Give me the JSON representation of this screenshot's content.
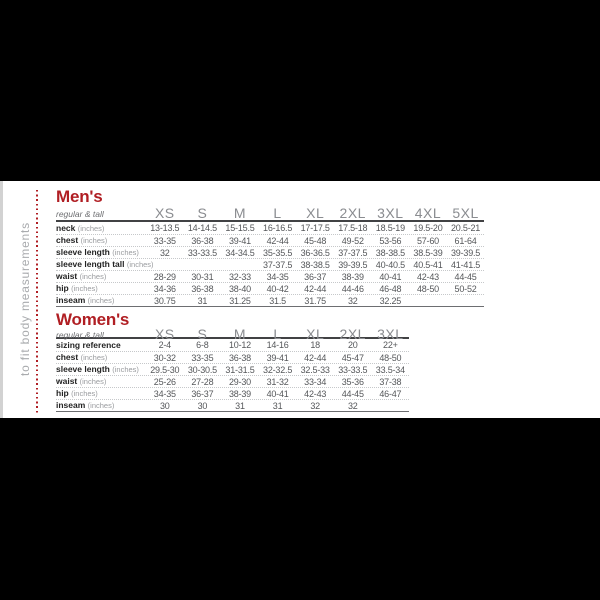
{
  "sidebar_label": "to fit body measurements",
  "colors": {
    "accent_red": "#B01E23",
    "background": "#000000",
    "panel": "#FFFFFF",
    "header_gray": "#8A8C90",
    "value_gray": "#55575A"
  },
  "chart_data": [
    {
      "type": "table",
      "title": "Men's",
      "subtitle": "regular & tall",
      "columns": [
        "XS",
        "S",
        "M",
        "L",
        "XL",
        "2XL",
        "3XL",
        "4XL",
        "5XL"
      ],
      "rows": [
        {
          "label": "neck",
          "unit": "(inches)",
          "values": [
            "13-13.5",
            "14-14.5",
            "15-15.5",
            "16-16.5",
            "17-17.5",
            "17.5-18",
            "18.5-19",
            "19.5-20",
            "20.5-21"
          ]
        },
        {
          "label": "chest",
          "unit": "(inches)",
          "values": [
            "33-35",
            "36-38",
            "39-41",
            "42-44",
            "45-48",
            "49-52",
            "53-56",
            "57-60",
            "61-64"
          ]
        },
        {
          "label": "sleeve length",
          "unit": "(inches)",
          "values": [
            "32",
            "33-33.5",
            "34-34.5",
            "35-35.5",
            "36-36.5",
            "37-37.5",
            "38-38.5",
            "38.5-39",
            "39-39.5"
          ]
        },
        {
          "label": "sleeve length tall",
          "unit": "(inches)",
          "values": [
            "",
            "",
            "",
            "37-37.5",
            "38-38.5",
            "39-39.5",
            "40-40.5",
            "40.5-41",
            "41-41.5"
          ]
        },
        {
          "label": "waist",
          "unit": "(inches)",
          "values": [
            "28-29",
            "30-31",
            "32-33",
            "34-35",
            "36-37",
            "38-39",
            "40-41",
            "42-43",
            "44-45"
          ]
        },
        {
          "label": "hip",
          "unit": "(inches)",
          "values": [
            "34-36",
            "36-38",
            "38-40",
            "40-42",
            "42-44",
            "44-46",
            "46-48",
            "48-50",
            "50-52"
          ]
        },
        {
          "label": "inseam",
          "unit": "(inches)",
          "values": [
            "30.75",
            "31",
            "31.25",
            "31.5",
            "31.75",
            "32",
            "32.25",
            "",
            ""
          ]
        }
      ]
    },
    {
      "type": "table",
      "title": "Women's",
      "subtitle": "regular & tall",
      "columns": [
        "XS",
        "S",
        "M",
        "L",
        "XL",
        "2XL",
        "3XL"
      ],
      "rows": [
        {
          "label": "sizing reference",
          "unit": "",
          "values": [
            "2-4",
            "6-8",
            "10-12",
            "14-16",
            "18",
            "20",
            "22+"
          ]
        },
        {
          "label": "chest",
          "unit": "(inches)",
          "values": [
            "30-32",
            "33-35",
            "36-38",
            "39-41",
            "42-44",
            "45-47",
            "48-50"
          ]
        },
        {
          "label": "sleeve length",
          "unit": "(inches)",
          "values": [
            "29.5-30",
            "30-30.5",
            "31-31.5",
            "32-32.5",
            "32.5-33",
            "33-33.5",
            "33.5-34"
          ]
        },
        {
          "label": "waist",
          "unit": "(inches)",
          "values": [
            "25-26",
            "27-28",
            "29-30",
            "31-32",
            "33-34",
            "35-36",
            "37-38"
          ]
        },
        {
          "label": "hip",
          "unit": "(inches)",
          "values": [
            "34-35",
            "36-37",
            "38-39",
            "40-41",
            "42-43",
            "44-45",
            "46-47"
          ]
        },
        {
          "label": "inseam",
          "unit": "(inches)",
          "values": [
            "30",
            "30",
            "31",
            "31",
            "32",
            "32",
            ""
          ]
        }
      ]
    }
  ]
}
